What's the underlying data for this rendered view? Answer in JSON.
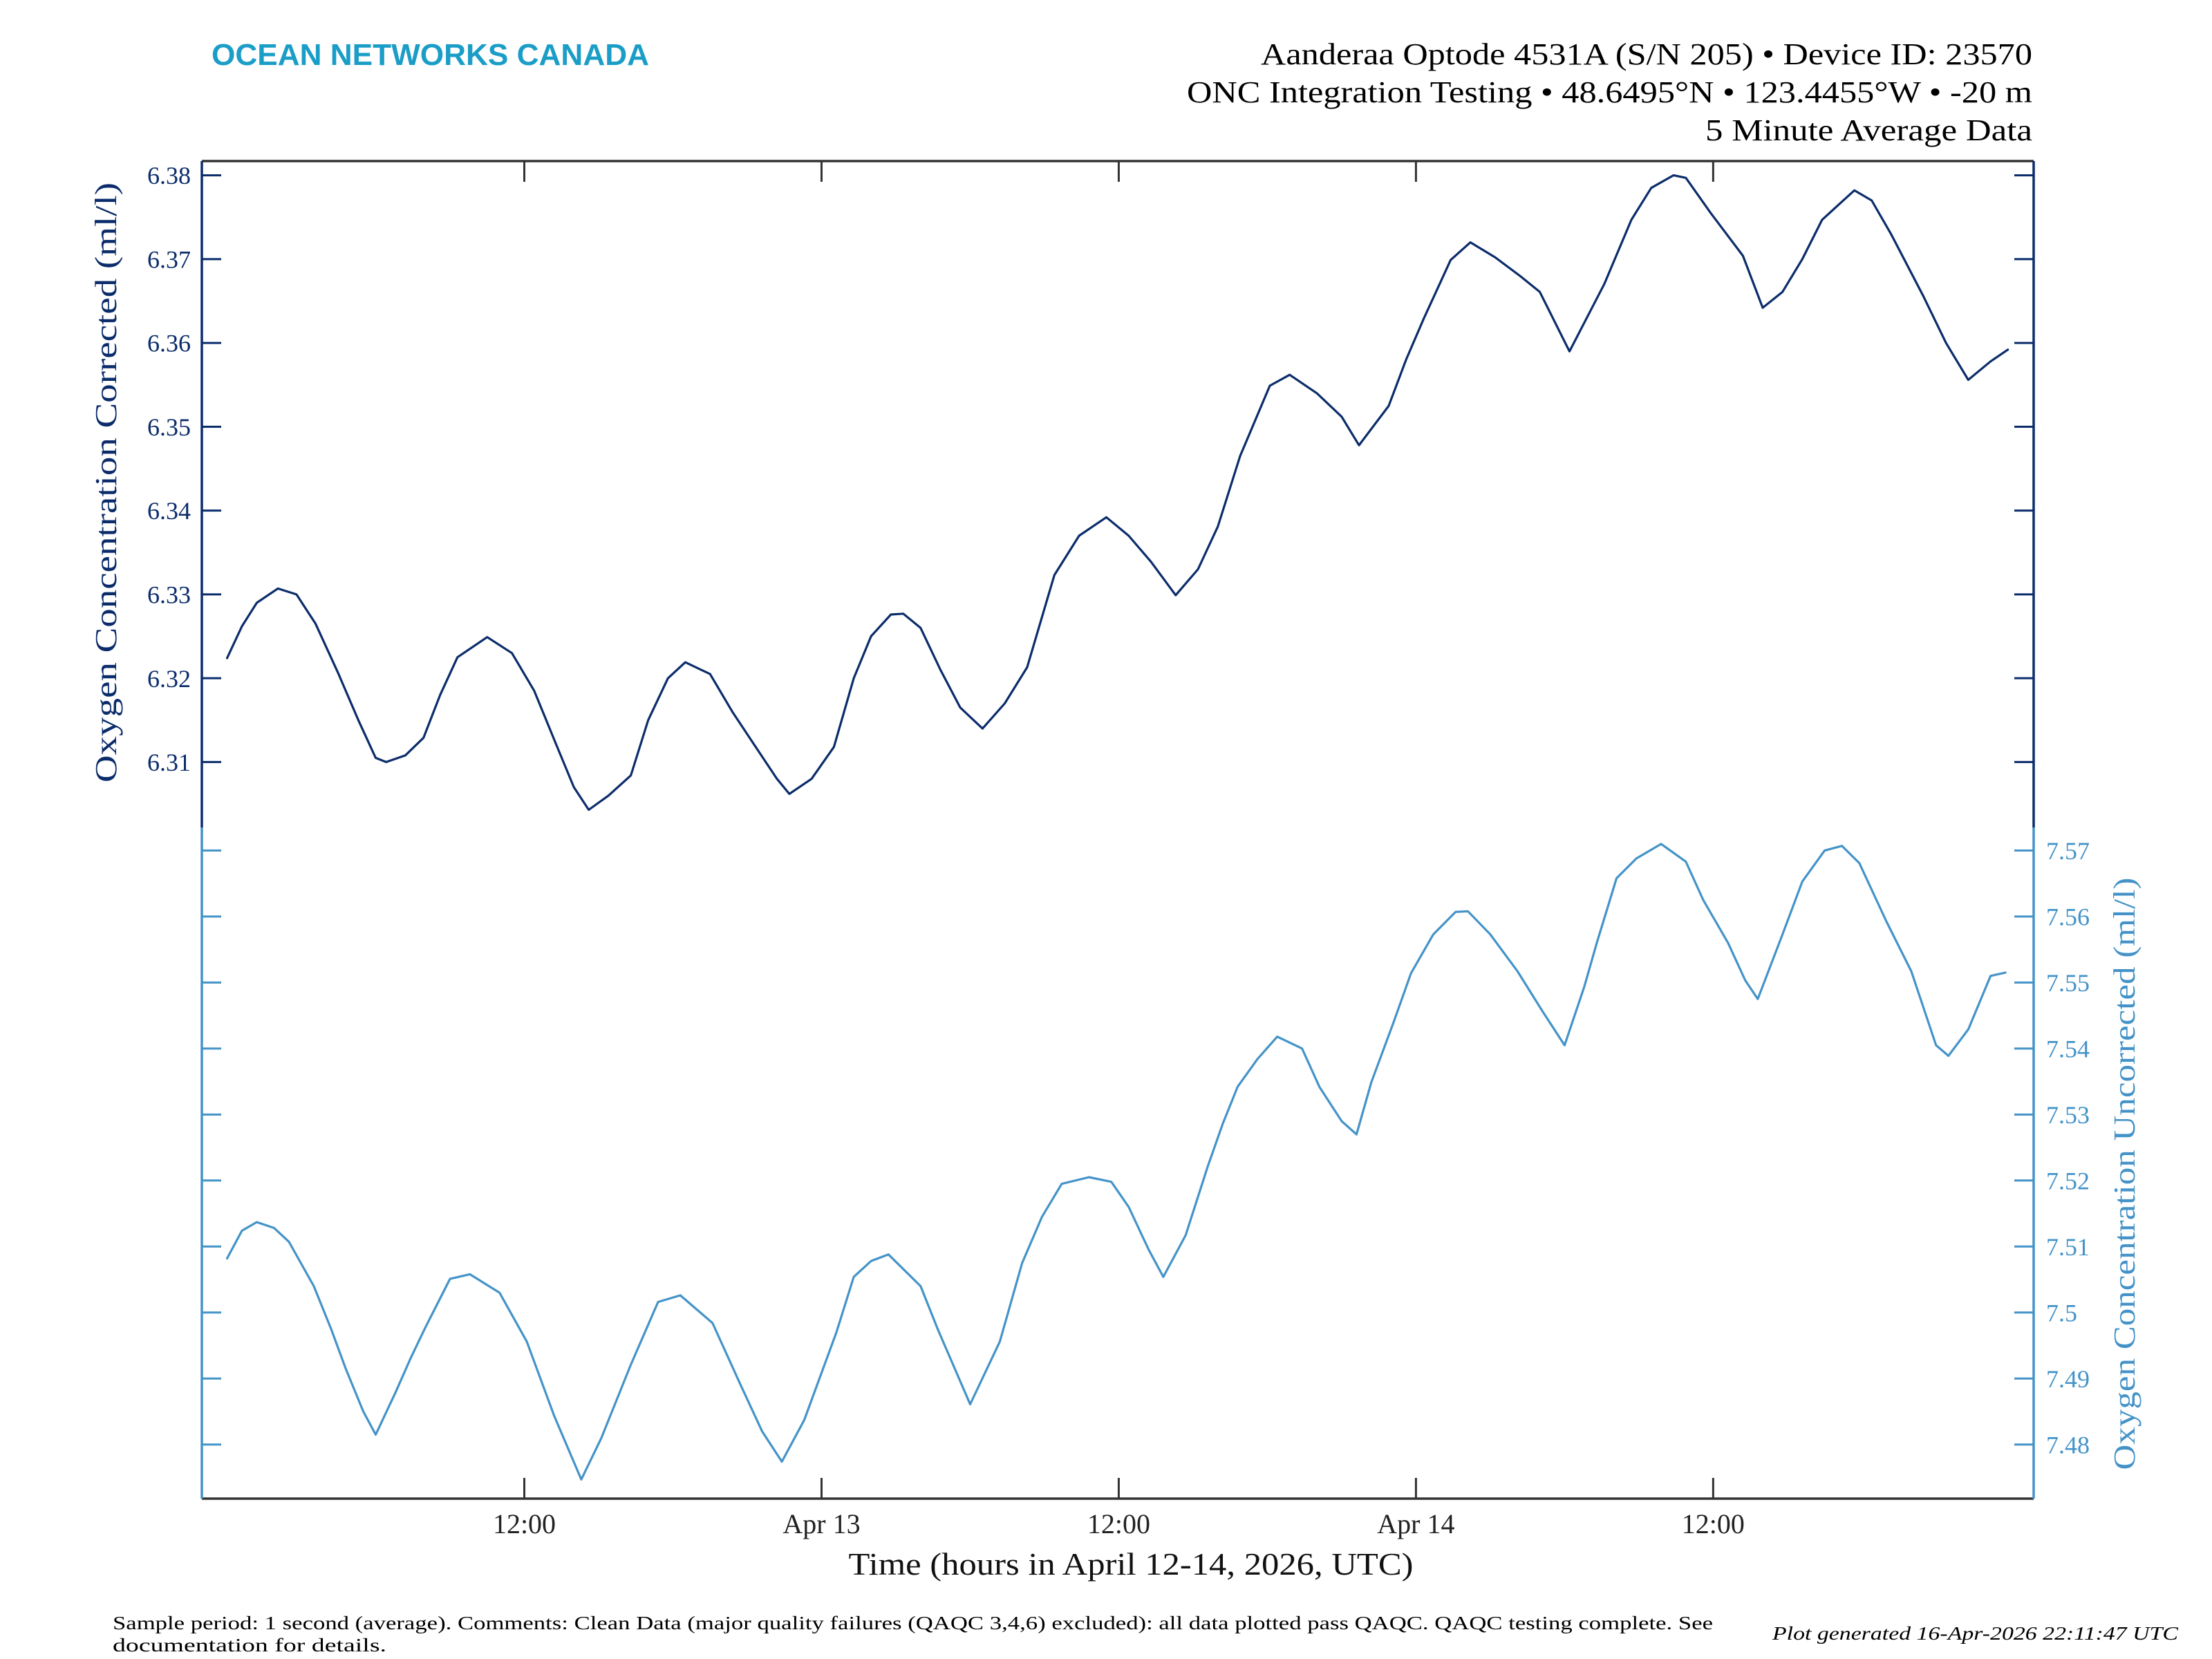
{
  "logo": {
    "text": "OCEAN NETWORKS CANADA",
    "icon": "ocean-networks-canada-wordmark"
  },
  "header": {
    "line1": "Aanderaa Optode 4531A (S/N 205) • Device ID: 23570",
    "line2": "ONC Integration Testing • 48.6495°N • 123.4455°W • -20 m",
    "line3": "5 Minute Average Data"
  },
  "footer": {
    "comments_line1": "Sample period: 1 second (average). Comments: Clean Data (major quality failures (QAQC 3,4,6) excluded): all data plotted pass QAQC. QAQC testing complete. See",
    "comments_line2": "documentation for details.",
    "generated": "Plot generated 16-Apr-2026 22:11:47 UTC"
  },
  "colors": {
    "logo": "#1a9dc6",
    "frame": "#333333",
    "corrected": "#0b2c6b",
    "uncorrected": "#4493c8"
  },
  "chart_data": {
    "type": "line",
    "xlabel": "Time (hours in April 12-14, 2026, UTC)",
    "xlim": [
      -1.02,
      72.94
    ],
    "xticks": [
      12,
      24,
      36,
      48,
      60
    ],
    "xtick_labels": [
      "12:00",
      "Apr 13",
      "12:00",
      "Apr 14",
      "12:00"
    ],
    "grid": false,
    "legend": "none",
    "series": [
      {
        "name": "Oxygen Concentration Corrected",
        "ylabel": "Oxygen Concentration Corrected (ml/l)",
        "axis": "left",
        "panel": "upper",
        "color": "#0b2c6b",
        "ylim": [
          6.3022,
          6.3817
        ],
        "yticks": [
          6.31,
          6.32,
          6.33,
          6.34,
          6.35,
          6.36,
          6.37,
          6.38
        ],
        "ytick_labels": [
          "6.31",
          "6.32",
          "6.33",
          "6.34",
          "6.35",
          "6.36",
          "6.37",
          "6.38"
        ],
        "x": [
          0.0,
          0.6,
          1.2,
          2.05,
          2.8,
          3.57,
          4.5,
          5.3,
          6.0,
          6.42,
          7.2,
          7.93,
          8.6,
          9.3,
          10.5,
          11.5,
          12.4,
          13.3,
          14.0,
          14.6,
          15.4,
          16.3,
          17.0,
          17.8,
          18.5,
          19.5,
          20.4,
          21.3,
          22.2,
          22.7,
          23.6,
          24.5,
          25.3,
          26.0,
          26.8,
          27.3,
          28.0,
          28.8,
          29.6,
          30.5,
          31.4,
          32.3,
          33.4,
          34.4,
          35.5,
          36.4,
          37.3,
          38.3,
          39.2,
          40.0,
          40.9,
          42.1,
          42.9,
          44.0,
          45.0,
          45.7,
          46.9,
          47.6,
          48.3,
          49.4,
          50.2,
          51.2,
          52.2,
          53.0,
          54.2,
          55.6,
          56.7,
          57.5,
          58.4,
          58.9,
          59.9,
          61.2,
          62.0,
          62.8,
          63.6,
          64.4,
          65.7,
          66.4,
          67.2,
          68.5,
          69.4,
          70.3,
          71.2,
          71.9
        ],
        "y": [
          6.3224,
          6.3262,
          6.329,
          6.3307,
          6.33,
          6.3265,
          6.3205,
          6.315,
          6.3105,
          6.31,
          6.3108,
          6.3129,
          6.318,
          6.3225,
          6.3249,
          6.323,
          6.3185,
          6.312,
          6.307,
          6.3043,
          6.306,
          6.3084,
          6.315,
          6.32,
          6.3219,
          6.3205,
          6.316,
          6.312,
          6.308,
          6.3062,
          6.308,
          6.3118,
          6.32,
          6.325,
          6.3276,
          6.3277,
          6.326,
          6.321,
          6.3165,
          6.314,
          6.317,
          6.3213,
          6.3323,
          6.337,
          6.3392,
          6.337,
          6.3339,
          6.3299,
          6.333,
          6.3381,
          6.3465,
          6.3549,
          6.3562,
          6.354,
          6.3512,
          6.3478,
          6.3525,
          6.358,
          6.3628,
          6.3699,
          6.372,
          6.3702,
          6.368,
          6.3661,
          6.359,
          6.367,
          6.3747,
          6.3785,
          6.38,
          6.3797,
          6.3755,
          6.3704,
          6.3642,
          6.3661,
          6.37,
          6.3747,
          6.3782,
          6.377,
          6.3729,
          6.3655,
          6.36,
          6.3556,
          6.3578,
          6.3592
        ]
      },
      {
        "name": "Oxygen Concentration Uncorrected",
        "ylabel": "Oxygen Concentration Uncorrected (ml/l)",
        "axis": "right",
        "panel": "lower",
        "color": "#4493c8",
        "ylim": [
          7.4718,
          7.5735
        ],
        "yticks": [
          7.48,
          7.49,
          7.5,
          7.51,
          7.52,
          7.53,
          7.54,
          7.55,
          7.56,
          7.57
        ],
        "ytick_labels": [
          "7.48",
          "7.49",
          "7.5",
          "7.51",
          "7.52",
          "7.53",
          "7.54",
          "7.55",
          "7.56",
          "7.57"
        ],
        "x": [
          0.0,
          0.6,
          1.2,
          1.9,
          2.5,
          3.5,
          4.2,
          4.8,
          5.5,
          6.0,
          6.8,
          7.4,
          8.0,
          9.0,
          9.8,
          11.0,
          12.1,
          13.2,
          14.3,
          15.1,
          16.3,
          17.4,
          18.3,
          19.6,
          20.7,
          21.6,
          22.4,
          23.3,
          24.6,
          25.3,
          26.0,
          26.7,
          28.0,
          28.7,
          30.0,
          31.2,
          32.1,
          32.9,
          33.7,
          34.8,
          35.7,
          36.4,
          37.2,
          37.8,
          38.7,
          39.6,
          40.2,
          40.8,
          41.6,
          42.4,
          43.4,
          44.1,
          45.0,
          45.6,
          46.2,
          47.1,
          47.8,
          48.7,
          49.6,
          50.1,
          51.0,
          52.1,
          53.1,
          54.0,
          54.8,
          55.3,
          56.1,
          56.9,
          57.9,
          58.9,
          59.6,
          60.6,
          61.3,
          61.8,
          62.8,
          63.6,
          64.5,
          65.2,
          65.9,
          67.0,
          68.0,
          69.0,
          69.5,
          70.3,
          71.2,
          71.8
        ],
        "y": [
          7.5082,
          7.5124,
          7.5137,
          7.5128,
          7.5107,
          7.504,
          7.4975,
          7.4914,
          7.485,
          7.4815,
          7.4879,
          7.493,
          7.4977,
          7.5051,
          7.5058,
          7.503,
          7.4956,
          7.4844,
          7.4747,
          7.4809,
          7.4921,
          7.5016,
          7.5026,
          7.4984,
          7.4893,
          7.482,
          7.4774,
          7.4837,
          7.497,
          7.5054,
          7.5078,
          7.5088,
          7.504,
          7.4974,
          7.4861,
          7.4956,
          7.5075,
          7.5145,
          7.5195,
          7.5205,
          7.5198,
          7.516,
          7.5096,
          7.5054,
          7.5117,
          7.5222,
          7.5286,
          7.5342,
          7.5384,
          7.5418,
          7.54,
          7.5342,
          7.529,
          7.527,
          7.5349,
          7.544,
          7.5514,
          7.5573,
          7.5607,
          7.5608,
          7.5573,
          7.5517,
          7.5457,
          7.5405,
          7.5494,
          7.556,
          7.5658,
          7.5688,
          7.571,
          7.5683,
          7.5625,
          7.556,
          7.5503,
          7.5475,
          7.5573,
          7.5653,
          7.57,
          7.5707,
          7.5681,
          7.5592,
          7.5517,
          7.5405,
          7.5389,
          7.5429,
          7.551,
          7.5515
        ]
      }
    ]
  }
}
